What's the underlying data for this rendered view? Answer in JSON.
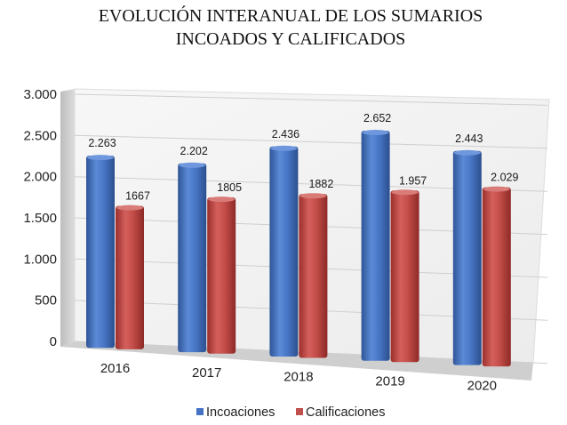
{
  "chart_data": {
    "type": "bar",
    "title_lines": [
      "EVOLUCIÓN INTERANUAL DE LOS SUMARIOS",
      "INCOADOS Y CALIFICADOS"
    ],
    "categories": [
      "2016",
      "2017",
      "2018",
      "2019",
      "2020"
    ],
    "series": [
      {
        "name": "Incoaciones",
        "color": "#4472C4",
        "values": [
          2263,
          2202,
          2436,
          2652,
          2443
        ],
        "labels": [
          "2.263",
          "2.202",
          "2.436",
          "2.652",
          "2.443"
        ]
      },
      {
        "name": "Calificaciones",
        "color": "#C0504D",
        "values": [
          1667,
          1805,
          1882,
          1957,
          2029
        ],
        "labels": [
          "1667",
          "1805",
          "1882",
          "1.957",
          "2.029"
        ]
      }
    ],
    "ylim": [
      0,
      3000
    ],
    "yticks": [
      0,
      500,
      1000,
      1500,
      2000,
      2500,
      3000
    ],
    "ytick_labels": [
      "0",
      "500",
      "1.000",
      "1.500",
      "2.000",
      "2.500",
      "3.000"
    ],
    "grid": true,
    "legend_position": "bottom",
    "style": "3d-perspective-columns"
  }
}
